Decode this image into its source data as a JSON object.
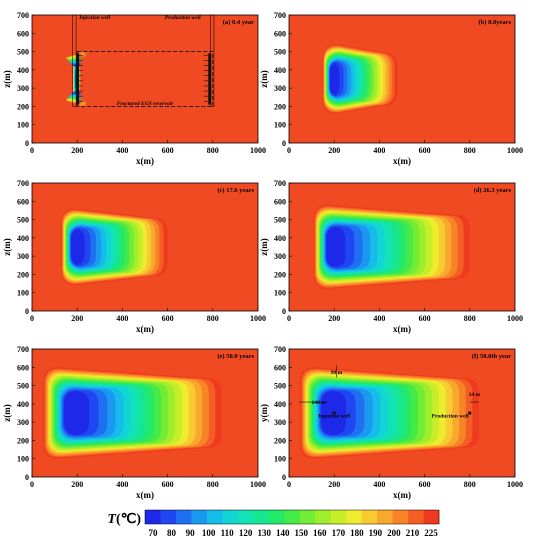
{
  "palette": [
    "#1e28e8",
    "#1f46f0",
    "#1f6ff2",
    "#1b98f0",
    "#16bcea",
    "#12d6d4",
    "#12e2b4",
    "#16e690",
    "#24e86a",
    "#46ea46",
    "#72ec34",
    "#9eee2c",
    "#c8ee2a",
    "#eeec2e",
    "#f8cc30",
    "#f8a82c",
    "#f88428",
    "#f45e24",
    "#ee3a1e"
  ],
  "background_color": "#f04a22",
  "colorbar": {
    "label_symbol": "T",
    "label_unit": "(℃)",
    "ticks": [
      "70",
      "80",
      "90",
      "100",
      "110",
      "120",
      "130",
      "140",
      "150",
      "160",
      "170",
      "180",
      "190",
      "200",
      "210",
      "225"
    ]
  },
  "chart_data": [
    {
      "type": "heatmap",
      "title": "(a) 0.4 year",
      "xlabel": "x(m)",
      "ylabel": "z(m)",
      "xlim": [
        0,
        1000
      ],
      "ylim": [
        0,
        700
      ],
      "xticks": [
        "0",
        "200",
        "400",
        "600",
        "800",
        "1000"
      ],
      "yticks": [
        "0",
        "100",
        "200",
        "300",
        "400",
        "500",
        "600",
        "700"
      ],
      "cool_zone": {
        "x_range": [
          180,
          215
        ],
        "z_range": [
          190,
          510
        ]
      },
      "annotations": [
        {
          "text": "Injection well",
          "x": 200,
          "z": 690
        },
        {
          "text": "Production well",
          "x": 800,
          "z": 690
        },
        {
          "text": "Fractured EGS reservoir",
          "x": 500,
          "z": 220
        }
      ]
    },
    {
      "type": "heatmap",
      "title": "(b) 8.0years",
      "xlabel": "x(m)",
      "ylabel": "z(m)",
      "xlim": [
        0,
        1000
      ],
      "ylim": [
        0,
        700
      ],
      "xticks": [
        "0",
        "200",
        "400",
        "600",
        "800",
        "1000"
      ],
      "yticks": [
        "0",
        "100",
        "200",
        "300",
        "400",
        "500",
        "600",
        "700"
      ],
      "cool_zone": {
        "x_range": [
          150,
          480
        ],
        "z_range": [
          160,
          540
        ]
      }
    },
    {
      "type": "heatmap",
      "title": "(c) 17.6 years",
      "xlabel": "x(m)",
      "ylabel": "z(m)",
      "xlim": [
        0,
        1000
      ],
      "ylim": [
        0,
        700
      ],
      "xticks": [
        "0",
        "200",
        "400",
        "600",
        "800",
        "1000"
      ],
      "yticks": [
        "0",
        "100",
        "200",
        "300",
        "400",
        "500",
        "600",
        "700"
      ],
      "cool_zone": {
        "x_range": [
          130,
          600
        ],
        "z_range": [
          140,
          560
        ]
      }
    },
    {
      "type": "heatmap",
      "title": "(d) 26.3 years",
      "xlabel": "x(m)",
      "ylabel": "z(m)",
      "xlim": [
        0,
        1000
      ],
      "ylim": [
        0,
        700
      ],
      "xticks": [
        "0",
        "200",
        "400",
        "600",
        "800",
        "1000"
      ],
      "yticks": [
        "0",
        "100",
        "200",
        "300",
        "400",
        "500",
        "600",
        "700"
      ],
      "cool_zone": {
        "x_range": [
          110,
          800
        ],
        "z_range": [
          120,
          580
        ]
      }
    },
    {
      "type": "heatmap",
      "title": "(e) 50.0 years",
      "xlabel": "x(m)",
      "ylabel": "z(m)",
      "xlim": [
        0,
        1000
      ],
      "ylim": [
        0,
        700
      ],
      "xticks": [
        "0",
        "200",
        "400",
        "600",
        "800",
        "1000"
      ],
      "yticks": [
        "0",
        "100",
        "200",
        "300",
        "400",
        "500",
        "600",
        "700"
      ],
      "cool_zone": {
        "x_range": [
          50,
          840
        ],
        "z_range": [
          100,
          600
        ]
      }
    },
    {
      "type": "heatmap",
      "title": "(f) 50.0th year",
      "xlabel": "x(m)",
      "ylabel": "y(m)",
      "xlim": [
        0,
        1000
      ],
      "ylim": [
        0,
        700
      ],
      "xticks": [
        "0",
        "200",
        "400",
        "600",
        "800",
        "1000"
      ],
      "yticks": [
        "0",
        "100",
        "200",
        "300",
        "400",
        "500",
        "600",
        "700"
      ],
      "cool_zone": {
        "x_range": [
          50,
          840
        ],
        "z_range": [
          100,
          600
        ]
      },
      "annotations": [
        {
          "text": "99 m",
          "x": 210,
          "z": 575
        },
        {
          "text": "148 m",
          "x": 100,
          "z": 410
        },
        {
          "text": "24 m",
          "x": 820,
          "z": 455
        },
        {
          "text": "Injection well",
          "x": 200,
          "z": 335
        },
        {
          "text": "Production well",
          "x": 795,
          "z": 335
        }
      ]
    }
  ]
}
